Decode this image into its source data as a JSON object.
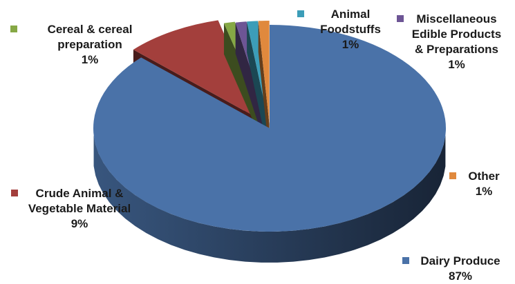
{
  "chart_data": {
    "type": "pie",
    "style": "3d-exploded",
    "slices": [
      {
        "label": "Dairy Produce",
        "value": 87,
        "value_label": "87%",
        "color": "#4a72a8"
      },
      {
        "label": "Crude Animal & Vegetable Material",
        "value": 9,
        "value_label": "9%",
        "color": "#a33f3c"
      },
      {
        "label": "Cereal & cereal preparation",
        "value": 1,
        "value_label": "1%",
        "color": "#86a845"
      },
      {
        "label": "Miscellaneous Edible Products & Preparations",
        "value": 1,
        "value_label": "1%",
        "color": "#6d5595"
      },
      {
        "label": "Animal Foodstuffs",
        "value": 1,
        "value_label": "1%",
        "color": "#3c9db8"
      },
      {
        "label": "Other",
        "value": 1,
        "value_label": "1%",
        "color": "#e0893d"
      }
    ]
  }
}
